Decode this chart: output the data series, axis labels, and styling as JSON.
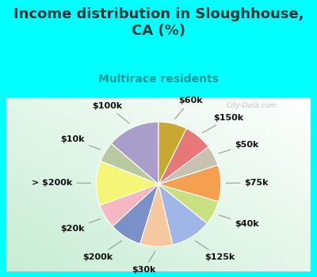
{
  "title": "Income distribution in Sloughhouse,\nCA (%)",
  "subtitle": "Multirace residents",
  "title_color": "#003333",
  "subtitle_color": "#009999",
  "bg_outer": "#00ffff",
  "watermark": "City-Data.com",
  "labels": [
    "$100k",
    "$10k",
    "> $200k",
    "$20k",
    "$200k",
    "$30k",
    "$125k",
    "$40k",
    "$75k",
    "$50k",
    "$150k",
    "$60k"
  ],
  "values": [
    13,
    5,
    11,
    6,
    8,
    8,
    10,
    6,
    9,
    5,
    7,
    7
  ],
  "colors": [
    "#a89ec9",
    "#b8c9a0",
    "#f5f577",
    "#f5b8c3",
    "#7b8fc9",
    "#f5c8a0",
    "#a0b5e8",
    "#c9e080",
    "#f5a050",
    "#c8c0b0",
    "#e87878",
    "#c8a830"
  ],
  "startangle": 90,
  "label_fontsize": 8,
  "title_fontsize": 13,
  "subtitle_fontsize": 10
}
